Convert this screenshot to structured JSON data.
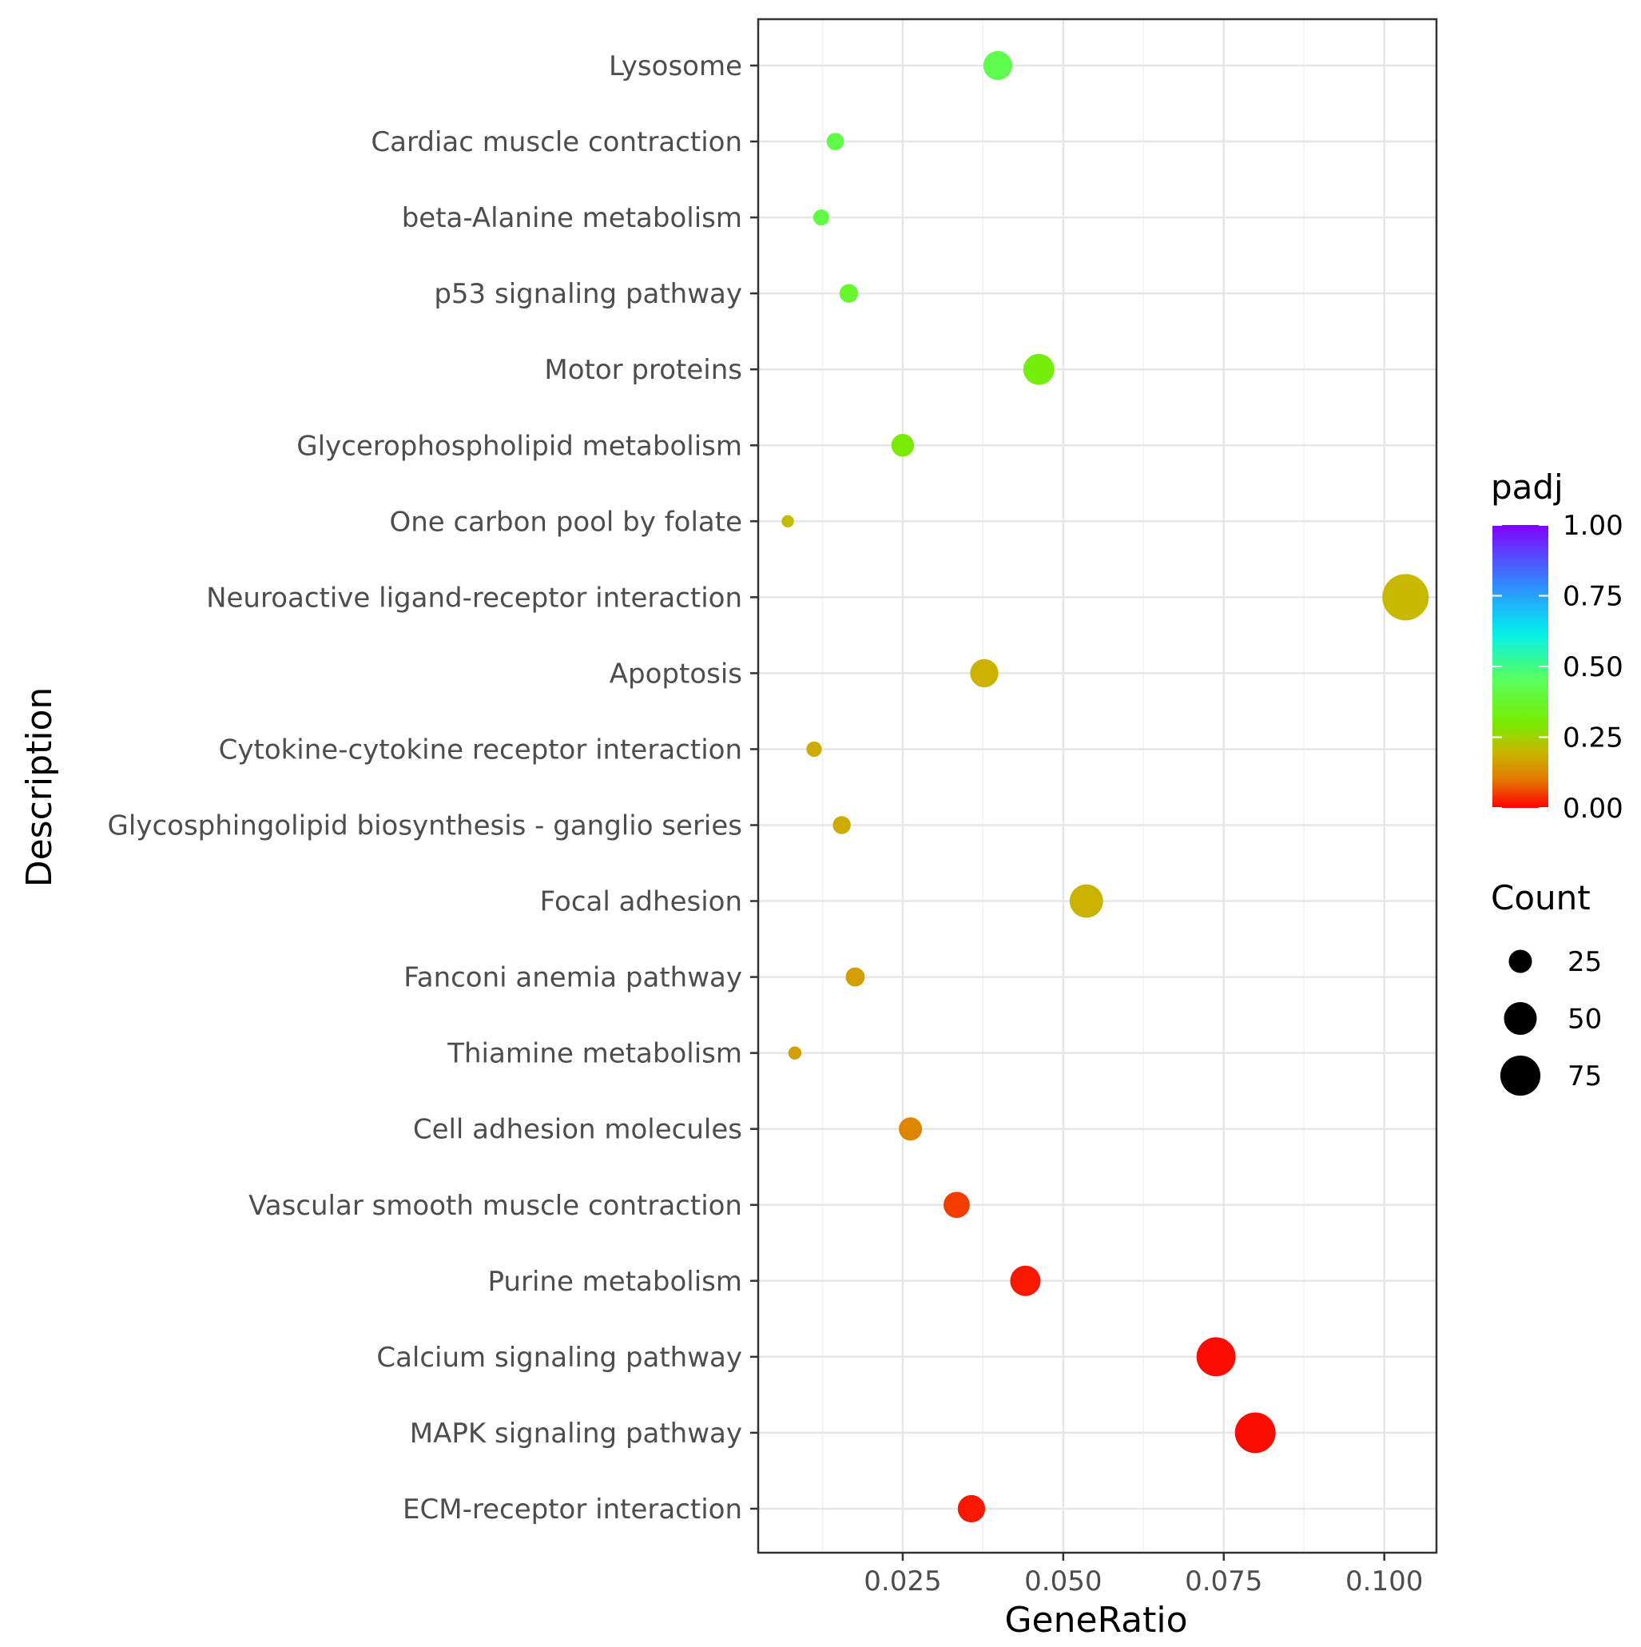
{
  "chart_data": {
    "type": "scatter",
    "title": "",
    "xlabel": "GeneRatio",
    "ylabel": "Description",
    "xlim": [
      0.0025,
      0.108
    ],
    "xticks": [
      0.025,
      0.05,
      0.075,
      0.1
    ],
    "xtick_labels": [
      "0.025",
      "0.050",
      "0.075",
      "0.100"
    ],
    "grid": true,
    "categories": [
      "Lysosome",
      "Cardiac muscle contraction",
      "beta-Alanine metabolism",
      "p53 signaling pathway",
      "Motor proteins",
      "Glycerophospholipid metabolism",
      "One carbon pool by folate",
      "Neuroactive ligand-receptor interaction",
      "Apoptosis",
      "Cytokine-cytokine receptor interaction",
      "Glycosphingolipid biosynthesis - ganglio series",
      "Focal adhesion",
      "Fanconi anemia pathway",
      "Thiamine metabolism",
      "Cell adhesion molecules",
      "Vascular smooth muscle contraction",
      "Purine metabolism",
      "Calcium signaling pathway",
      "MAPK signaling pathway",
      "ECM-receptor interaction"
    ],
    "gene_ratio": [
      0.0398,
      0.0145,
      0.0123,
      0.0166,
      0.0462,
      0.025,
      0.0071,
      0.1033,
      0.0377,
      0.0112,
      0.0155,
      0.0536,
      0.0176,
      0.0082,
      0.0262,
      0.0334,
      0.0441,
      0.0738,
      0.0799,
      0.0357
    ],
    "count": [
      39,
      14,
      12,
      16,
      45,
      24,
      7,
      100,
      37,
      11,
      15,
      52,
      17,
      8,
      25,
      32,
      43,
      71,
      77,
      35
    ],
    "padj": [
      0.43,
      0.42,
      0.41,
      0.38,
      0.32,
      0.3,
      0.21,
      0.2,
      0.19,
      0.18,
      0.18,
      0.19,
      0.16,
      0.16,
      0.12,
      0.05,
      0.02,
      0.01,
      0.01,
      0.02
    ],
    "color_legend": {
      "title": "padj",
      "range": [
        0,
        1
      ],
      "ticks": [
        "1.00",
        "0.75",
        "0.50",
        "0.25",
        "0.00"
      ],
      "tick_values": [
        1,
        0.75,
        0.5,
        0.25,
        0
      ]
    },
    "size_legend": {
      "title": "Count",
      "values": [
        25,
        50,
        75
      ],
      "labels": [
        "25",
        "50",
        "75"
      ]
    },
    "legend_position": "right"
  }
}
